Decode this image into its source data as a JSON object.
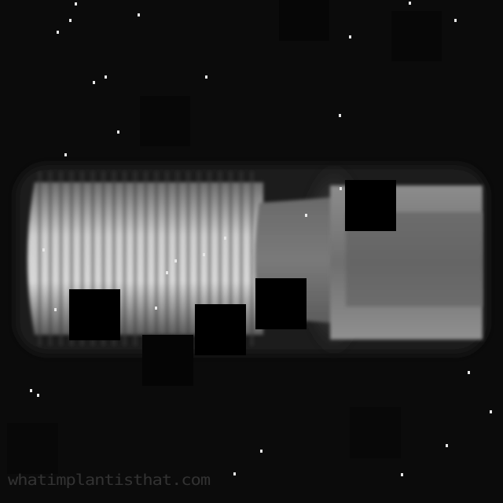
{
  "image": {
    "subject": "dental-implant-xray",
    "background_color": "#0b0b0b"
  },
  "watermark": {
    "text": "whatimplantisthat.com"
  }
}
